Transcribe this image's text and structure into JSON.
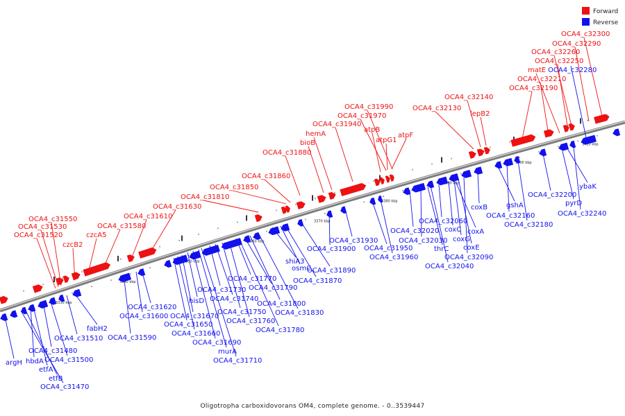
{
  "legend": {
    "forward_label": "Forward",
    "reverse_label": "Reverse",
    "forward_color": "#ee1111",
    "reverse_color": "#1111ee"
  },
  "caption": "Oligotropha carboxidovorans OM4, complete genome. - 0..3539447",
  "ticks": [
    "3330 kbp",
    "3340 kbp",
    "3350 kbp",
    "3360 kbp",
    "3370 kbp",
    "3380 kbp",
    "3390 kbp",
    "3400 kbp",
    "3410 kbp"
  ],
  "forward_genes": [
    "OCA4_c31520",
    "OCA4_c31530",
    "OCA4_c31550",
    "czcB2",
    "czcA5",
    "OCA4_c31580",
    "OCA4_c31610",
    "OCA4_c31630",
    "OCA4_c31810",
    "OCA4_c31850",
    "OCA4_c31860",
    "OCA4_c31880",
    "bioB",
    "hemA",
    "OCA4_c31940",
    "OCA4_c31970",
    "OCA4_c31990",
    "atpB",
    "atpG1",
    "atpF",
    "OCA4_c32130",
    "OCA4_c32140",
    "lepB2",
    "OCA4_c32190",
    "OCA4_c32210",
    "matE",
    "OCA4_c32250",
    "OCA4_c32260",
    "OCA4_c32290",
    "OCA4_c32300"
  ],
  "reverse_genes": [
    "argH",
    "hbdA",
    "OCA4_c31480",
    "etfA",
    "OCA4_c31500",
    "etfB",
    "OCA4_c31470",
    "OCA4_c31510",
    "fabH2",
    "OCA4_c31590",
    "OCA4_c31620",
    "OCA4_c31600",
    "OCA4_c31670",
    "OCA4_c31650",
    "OCA4_c31660",
    "OCA4_c31690",
    "murA",
    "OCA4_c31710",
    "hisD",
    "OCA4_c31730",
    "OCA4_c31740",
    "OCA4_c31750",
    "OCA4_c31760",
    "OCA4_c31770",
    "OCA4_c31780",
    "OCA4_c31790",
    "OCA4_c31800",
    "OCA4_c31830",
    "shiA3",
    "osmC",
    "OCA4_c31870",
    "OCA4_c31890",
    "OCA4_c31900",
    "OCA4_c31930",
    "OCA4_c31950",
    "OCA4_c31960",
    "OCA4_c32020",
    "OCA4_c32030",
    "thrC",
    "OCA4_c32040",
    "OCA4_c32060",
    "coxC",
    "coxG",
    "coxA",
    "coxE",
    "OCA4_c32090",
    "coxB",
    "gshA",
    "OCA4_c32160",
    "OCA4_c32180",
    "OCA4_c32200",
    "pyrD",
    "OCA4_c32240",
    "ybaK",
    "OCA4_c32280"
  ]
}
